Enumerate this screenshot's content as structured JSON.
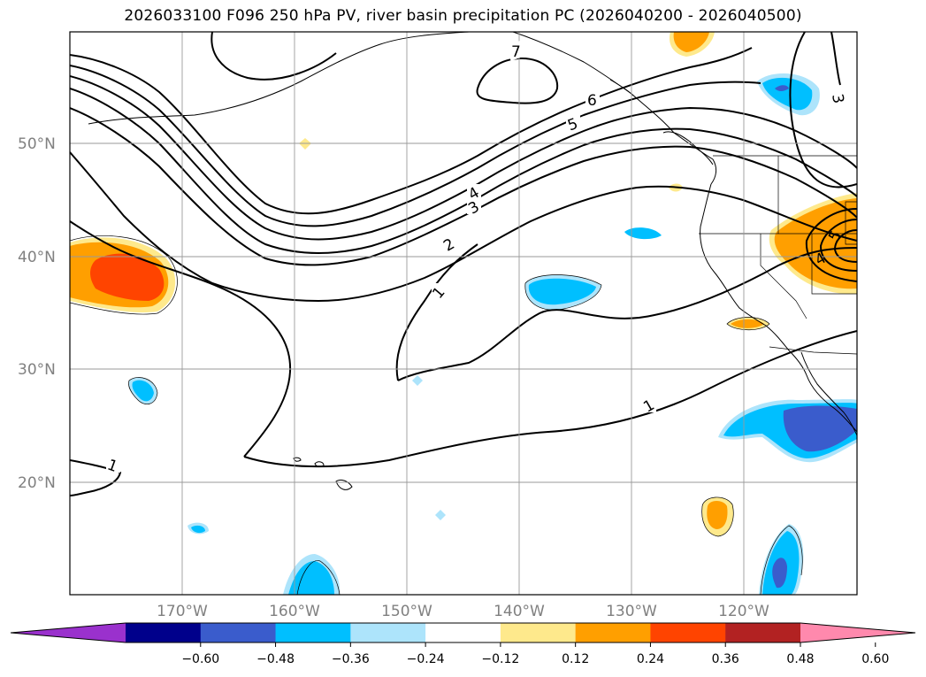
{
  "title": "2026033100 F096 250 hPa PV, river basin precipitation PC (2026040200 - 2026040500)",
  "lat_labels": [
    "50°N",
    "40°N",
    "30°N",
    "20°N"
  ],
  "lon_labels": [
    "170°W",
    "160°W",
    "150°W",
    "140°W",
    "130°W",
    "120°W"
  ],
  "colorbar": {
    "colors": [
      "#9a31cd",
      "#00008b",
      "#3a5ccc",
      "#00bfff",
      "#ade4fb",
      "#ffffff",
      "#fee98c",
      "#ff9f00",
      "#ff4400",
      "#b22222",
      "#ff89ad"
    ],
    "tick_labels": [
      "−0.60",
      "−0.48",
      "−0.36",
      "−0.24",
      "−0.12",
      "0.12",
      "0.24",
      "0.36",
      "0.48",
      "0.60"
    ]
  },
  "contour_labels": [
    "7",
    "6",
    "5",
    "4",
    "3",
    "2",
    "1",
    "1",
    "1",
    "3",
    "4",
    "5"
  ]
}
